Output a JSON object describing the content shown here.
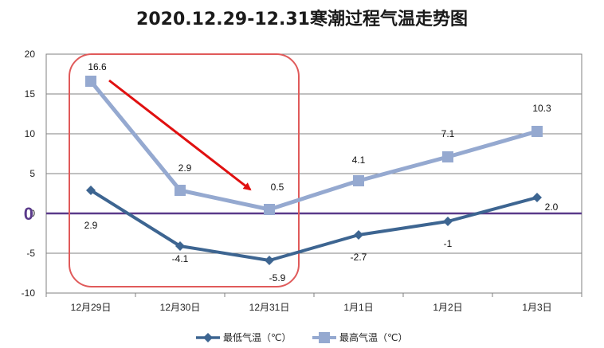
{
  "chart_data": {
    "type": "line",
    "title": "2020.12.29-12.31寒潮过程气温走势图",
    "categories": [
      "12月29日",
      "12月30日",
      "12月31日",
      "1月1日",
      "1月2日",
      "1月3日"
    ],
    "series": [
      {
        "name": "最低气温（℃）",
        "values": [
          2.9,
          -4.1,
          -5.9,
          -2.7,
          -1,
          2.0
        ],
        "labels": [
          "2.9",
          "-4.1",
          "-5.9",
          "-2.7",
          "-1",
          "2.0"
        ],
        "color": "#3d6591",
        "marker": "diamond"
      },
      {
        "name": "最高气温（℃）",
        "values": [
          16.6,
          2.9,
          0.5,
          4.1,
          7.1,
          10.3
        ],
        "labels": [
          "16.6",
          "2.9",
          "0.5",
          "4.1",
          "7.1",
          "10.3"
        ],
        "color": "#95a9d0",
        "marker": "square"
      }
    ],
    "ylim": [
      -10,
      20
    ],
    "yticks": [
      -10,
      -5,
      0,
      5,
      10,
      15,
      20
    ],
    "ytick_labels": [
      "-10",
      "-5",
      "0",
      "5",
      "10",
      "15",
      "20"
    ],
    "zero_highlight_label": "0",
    "grid": true,
    "legend_position": "bottom",
    "annotations": {
      "highlight_box": {
        "from_category": "12月29日",
        "to_category": "12月31日",
        "color": "#e05a5a"
      },
      "arrow": {
        "from_category": "12月29日",
        "to_category": "12月31日",
        "color": "#e01010"
      }
    },
    "colors": {
      "zero_line": "#5a3a8a",
      "grid": "#808080",
      "axis": "#808080"
    }
  }
}
